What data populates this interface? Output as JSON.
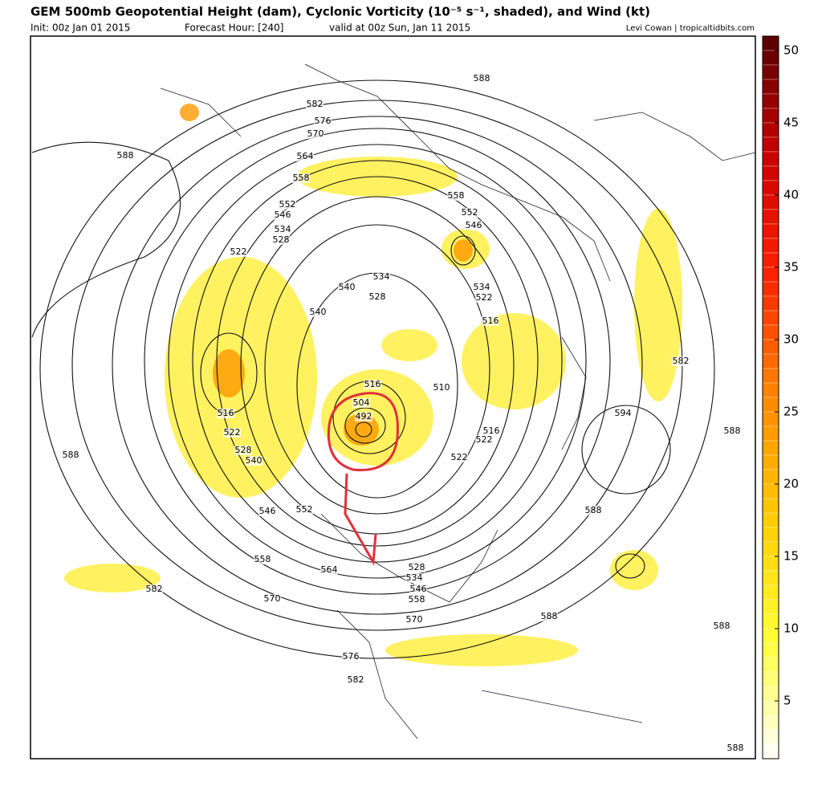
{
  "header": {
    "title": "GEM 500mb Geopotential Height (dam), Cyclonic Vorticity (10⁻⁵ s⁻¹, shaded), and Wind (kt)",
    "init": "Init: 00z Jan 01 2015",
    "forecast_hour": "Forecast Hour: [240]",
    "valid": "valid at 00z Sun, Jan 11 2015",
    "credit": "Levi Cowan | tropicaltidbits.com"
  },
  "contour_labels": [
    "588",
    "582",
    "576",
    "570",
    "564",
    "558",
    "552",
    "546",
    "534",
    "528",
    "522",
    "588",
    "558",
    "552",
    "546",
    "540",
    "534",
    "528",
    "540",
    "534",
    "522",
    "516",
    "510",
    "516",
    "504",
    "492",
    "516",
    "522",
    "528",
    "540",
    "588",
    "516",
    "522",
    "522",
    "594",
    "582",
    "588",
    "588",
    "546",
    "552",
    "558",
    "564",
    "528",
    "534",
    "546",
    "558",
    "570",
    "570",
    "582",
    "588",
    "588",
    "576",
    "582",
    "588"
  ],
  "colorbar": {
    "lim": [
      1,
      51
    ],
    "ticks": [
      5,
      10,
      15,
      20,
      25,
      30,
      35,
      40,
      45,
      50
    ],
    "colors": [
      "#ffffff",
      "#ffff33",
      "#ffcc00",
      "#ff8800",
      "#ff2200",
      "#cc0000",
      "#550000"
    ]
  }
}
